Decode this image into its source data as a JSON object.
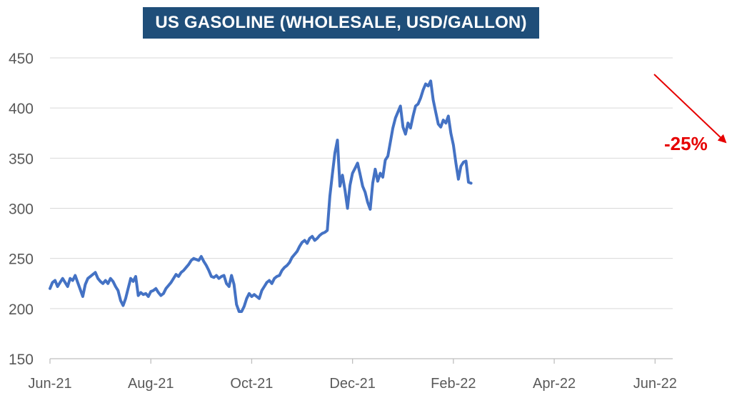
{
  "chart_data": {
    "type": "line",
    "title": "US GASOLINE (WHOLESALE, USD/GALLON)",
    "xlabel": "",
    "ylabel": "",
    "ylim": [
      150,
      450
    ],
    "yticks": [
      150,
      200,
      250,
      300,
      350,
      400,
      450
    ],
    "xtick_labels": [
      {
        "label": "Jun-21",
        "x": 0
      },
      {
        "label": "Aug-21",
        "x": 2
      },
      {
        "label": "Oct-21",
        "x": 4
      },
      {
        "label": "Dec-21",
        "x": 6
      },
      {
        "label": "Feb-22",
        "x": 8
      },
      {
        "label": "Apr-22",
        "x": 10
      },
      {
        "label": "Jun-22",
        "x": 12
      }
    ],
    "grid": true,
    "line_color": "#4472c4",
    "series": [
      {
        "values": [
          [
            0.0,
            220
          ],
          [
            0.05,
            226
          ],
          [
            0.1,
            228
          ],
          [
            0.15,
            222
          ],
          [
            0.2,
            226
          ],
          [
            0.25,
            230
          ],
          [
            0.3,
            226
          ],
          [
            0.35,
            222
          ],
          [
            0.4,
            230
          ],
          [
            0.45,
            228
          ],
          [
            0.5,
            233
          ],
          [
            0.55,
            226
          ],
          [
            0.6,
            219
          ],
          [
            0.65,
            212
          ],
          [
            0.7,
            224
          ],
          [
            0.75,
            230
          ],
          [
            0.8,
            232
          ],
          [
            0.85,
            234
          ],
          [
            0.9,
            236
          ],
          [
            0.95,
            230
          ],
          [
            1.0,
            227
          ],
          [
            1.05,
            225
          ],
          [
            1.1,
            228
          ],
          [
            1.15,
            225
          ],
          [
            1.2,
            230
          ],
          [
            1.25,
            227
          ],
          [
            1.3,
            222
          ],
          [
            1.35,
            218
          ],
          [
            1.4,
            208
          ],
          [
            1.45,
            203
          ],
          [
            1.5,
            210
          ],
          [
            1.55,
            220
          ],
          [
            1.6,
            230
          ],
          [
            1.65,
            227
          ],
          [
            1.7,
            232
          ],
          [
            1.75,
            213
          ],
          [
            1.8,
            216
          ],
          [
            1.85,
            214
          ],
          [
            1.9,
            215
          ],
          [
            1.95,
            212
          ],
          [
            2.0,
            217
          ],
          [
            2.05,
            218
          ],
          [
            2.1,
            220
          ],
          [
            2.15,
            216
          ],
          [
            2.2,
            213
          ],
          [
            2.25,
            215
          ],
          [
            2.3,
            220
          ],
          [
            2.35,
            223
          ],
          [
            2.4,
            226
          ],
          [
            2.45,
            230
          ],
          [
            2.5,
            234
          ],
          [
            2.55,
            232
          ],
          [
            2.6,
            236
          ],
          [
            2.65,
            238
          ],
          [
            2.7,
            241
          ],
          [
            2.75,
            244
          ],
          [
            2.8,
            248
          ],
          [
            2.85,
            250
          ],
          [
            2.9,
            249
          ],
          [
            2.95,
            248
          ],
          [
            3.0,
            252
          ],
          [
            3.05,
            247
          ],
          [
            3.1,
            243
          ],
          [
            3.15,
            238
          ],
          [
            3.2,
            232
          ],
          [
            3.25,
            231
          ],
          [
            3.3,
            233
          ],
          [
            3.35,
            230
          ],
          [
            3.4,
            232
          ],
          [
            3.45,
            233
          ],
          [
            3.5,
            225
          ],
          [
            3.55,
            222
          ],
          [
            3.6,
            233
          ],
          [
            3.65,
            224
          ],
          [
            3.7,
            204
          ],
          [
            3.75,
            197
          ],
          [
            3.8,
            197
          ],
          [
            3.85,
            202
          ],
          [
            3.9,
            210
          ],
          [
            3.95,
            215
          ],
          [
            4.0,
            212
          ],
          [
            4.05,
            214
          ],
          [
            4.1,
            212
          ],
          [
            4.15,
            210
          ],
          [
            4.2,
            218
          ],
          [
            4.25,
            222
          ],
          [
            4.3,
            226
          ],
          [
            4.35,
            228
          ],
          [
            4.4,
            225
          ],
          [
            4.45,
            230
          ],
          [
            4.5,
            232
          ],
          [
            4.55,
            233
          ],
          [
            4.6,
            238
          ],
          [
            4.65,
            241
          ],
          [
            4.7,
            243
          ],
          [
            4.75,
            246
          ],
          [
            4.8,
            251
          ],
          [
            4.85,
            254
          ],
          [
            4.9,
            257
          ],
          [
            4.95,
            262
          ],
          [
            5.0,
            266
          ],
          [
            5.05,
            268
          ],
          [
            5.1,
            265
          ],
          [
            5.15,
            270
          ],
          [
            5.2,
            272
          ],
          [
            5.25,
            268
          ],
          [
            5.3,
            270
          ],
          [
            5.35,
            273
          ],
          [
            5.4,
            275
          ],
          [
            5.45,
            276
          ],
          [
            5.5,
            278
          ],
          [
            5.55,
            312
          ],
          [
            5.6,
            334
          ],
          [
            5.65,
            355
          ],
          [
            5.7,
            368
          ],
          [
            5.75,
            322
          ],
          [
            5.8,
            333
          ],
          [
            5.85,
            318
          ],
          [
            5.9,
            300
          ],
          [
            5.95,
            323
          ],
          [
            6.0,
            335
          ],
          [
            6.05,
            340
          ],
          [
            6.1,
            345
          ],
          [
            6.15,
            334
          ],
          [
            6.2,
            322
          ],
          [
            6.25,
            316
          ],
          [
            6.3,
            306
          ],
          [
            6.35,
            299
          ],
          [
            6.4,
            325
          ],
          [
            6.45,
            339
          ],
          [
            6.5,
            327
          ],
          [
            6.55,
            335
          ],
          [
            6.6,
            331
          ],
          [
            6.65,
            348
          ],
          [
            6.7,
            352
          ],
          [
            6.75,
            366
          ],
          [
            6.8,
            380
          ],
          [
            6.85,
            390
          ],
          [
            6.9,
            396
          ],
          [
            6.95,
            402
          ],
          [
            7.0,
            381
          ],
          [
            7.05,
            374
          ],
          [
            7.1,
            385
          ],
          [
            7.15,
            380
          ],
          [
            7.2,
            392
          ],
          [
            7.25,
            402
          ],
          [
            7.3,
            404
          ],
          [
            7.35,
            410
          ],
          [
            7.4,
            418
          ],
          [
            7.45,
            424
          ],
          [
            7.5,
            422
          ],
          [
            7.55,
            427
          ],
          [
            7.6,
            408
          ],
          [
            7.65,
            396
          ],
          [
            7.7,
            384
          ],
          [
            7.75,
            381
          ],
          [
            7.8,
            388
          ],
          [
            7.85,
            385
          ],
          [
            7.9,
            392
          ],
          [
            7.95,
            375
          ],
          [
            8.0,
            363
          ],
          [
            8.05,
            345
          ],
          [
            8.1,
            329
          ],
          [
            8.15,
            342
          ],
          [
            8.2,
            346
          ],
          [
            8.25,
            347
          ],
          [
            8.3,
            326
          ],
          [
            8.35,
            325
          ]
        ]
      }
    ],
    "annotation": {
      "text": "-25%",
      "color": "#e60000"
    }
  }
}
